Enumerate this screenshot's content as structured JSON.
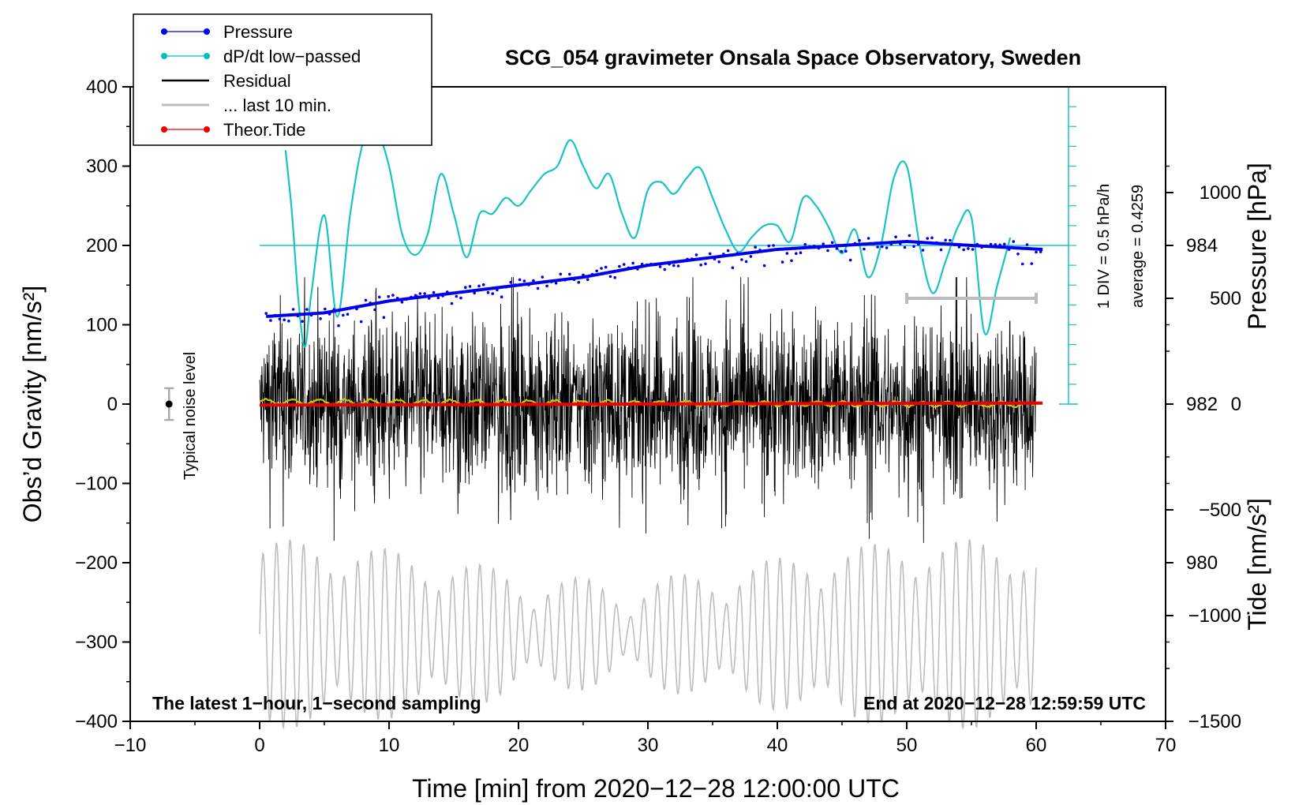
{
  "chart_data": {
    "type": "line",
    "title": "SCG_054 gravimeter Onsala Space Observatory, Sweden",
    "xlabel": "Time [min] from 2020−12−28 12:00:00 UTC",
    "ylabel_left": "Obs’d Gravity [nm/s²]",
    "ylabel_right_top": "Pressure [hPa]",
    "ylabel_right_bottom": "Tide [nm/s²]",
    "xlim": [
      -10,
      70
    ],
    "ylim": [
      -400,
      400
    ],
    "pressure_ylim": [
      978,
      986
    ],
    "tide_ylim": [
      -1500,
      1500
    ],
    "x_ticks": [
      -10,
      0,
      10,
      20,
      30,
      40,
      50,
      60,
      70
    ],
    "x_tick_labels": [
      "−10",
      "0",
      "10",
      "20",
      "30",
      "40",
      "50",
      "60",
      "70"
    ],
    "y_ticks": [
      -400,
      -300,
      -200,
      -100,
      0,
      100,
      200,
      300,
      400
    ],
    "y_tick_labels": [
      "−400",
      "−300",
      "−200",
      "−100",
      "0",
      "100",
      "200",
      "300",
      "400"
    ],
    "pressure_ticks": [
      980,
      982,
      984
    ],
    "pressure_tick_labels": [
      "980",
      "982",
      "984"
    ],
    "tide_ticks": [
      -1500,
      -1000,
      -500,
      0,
      500,
      1000
    ],
    "tide_tick_labels": [
      "−1500",
      "−1000",
      "−500",
      "0",
      "500",
      "1000"
    ],
    "legend": [
      {
        "label": "Pressure",
        "color": "#0000ee",
        "marker": true
      },
      {
        "label": "dP/dt low−passed",
        "color": "#00bfbf",
        "marker": true
      },
      {
        "label": "Residual",
        "color": "#000000",
        "marker": false
      },
      {
        "label": "... last 10 min.",
        "color": "#bdbdbd",
        "marker": false
      },
      {
        "label": "Theor.Tide",
        "color": "#ee0000",
        "marker": true
      }
    ],
    "series": [
      {
        "name": "Pressure",
        "axis": "pressure",
        "x": [
          0,
          5,
          10,
          15,
          20,
          25,
          30,
          35,
          40,
          45,
          50,
          55,
          60.5
        ],
        "values": [
          983.1,
          983.15,
          983.3,
          983.4,
          983.5,
          983.6,
          983.75,
          983.85,
          983.95,
          984.0,
          984.05,
          984.0,
          983.95
        ]
      },
      {
        "name": "dP/dt low−passed",
        "axis": "left",
        "x": [
          2.0,
          2.5,
          3.0,
          3.5,
          4.0,
          5.0,
          6.0,
          7.0,
          8.0,
          9.0,
          10.0,
          11.0,
          12.0,
          13.0,
          14.0,
          15.0,
          16.0,
          17.0,
          18.0,
          19.0,
          20.0,
          21.0,
          22.0,
          23.0,
          24.0,
          25.0,
          26.0,
          27.0,
          28.0,
          29.0,
          30.0,
          31.0,
          32.0,
          33.0,
          34.0,
          35.0,
          36.0,
          37.0,
          38.0,
          39.0,
          40.0,
          41.0,
          42.0,
          43.0,
          44.0,
          45.0,
          46.0,
          47.0,
          48.0,
          49.0,
          50.0,
          51.0,
          52.0,
          53.0,
          54.0,
          55.0,
          56.0,
          57.0,
          58.0
        ],
        "values": [
          320,
          240,
          130,
          72,
          140,
          238,
          110,
          240,
          330,
          345,
          300,
          215,
          188,
          215,
          290,
          240,
          185,
          240,
          240,
          260,
          250,
          270,
          290,
          300,
          333,
          300,
          272,
          290,
          240,
          210,
          270,
          280,
          265,
          285,
          298,
          260,
          220,
          192,
          210,
          225,
          225,
          205,
          260,
          250,
          222,
          190,
          220,
          160,
          200,
          285,
          300,
          200,
          140,
          180,
          225,
          235,
          90,
          150,
          210
        ]
      },
      {
        "name": "Residual",
        "axis": "left",
        "x_range": [
          0,
          60
        ],
        "envelope_peak": [
          165,
          -180
        ],
        "noise_note": "1-second sampled residual with envelope of roughly ±100 nm/s²"
      },
      {
        "name": "... last 10 min.",
        "axis": "left",
        "x_range": [
          50,
          60
        ],
        "note": "previous-hour trace drawn in grey"
      },
      {
        "name": "Theor.Tide",
        "axis": "tide",
        "x": [
          0,
          20,
          40,
          60.5
        ],
        "values": [
          -5,
          -2,
          2,
          5
        ]
      }
    ],
    "pressure_scale_bar": {
      "label": "1 DIV = 0.5 hPa/h",
      "average_label": "average = 0.4259"
    },
    "noise_marker": {
      "label": "Typical noise level",
      "x": -7,
      "y": 0,
      "halfwidth": 20
    },
    "ten_min_bar": {
      "x": [
        50,
        60
      ],
      "tide_value": 500
    },
    "annotation_left": "The latest 1−hour, 1−second sampling",
    "annotation_right": "End at 2020−12−28 12:59:59 UTC"
  }
}
